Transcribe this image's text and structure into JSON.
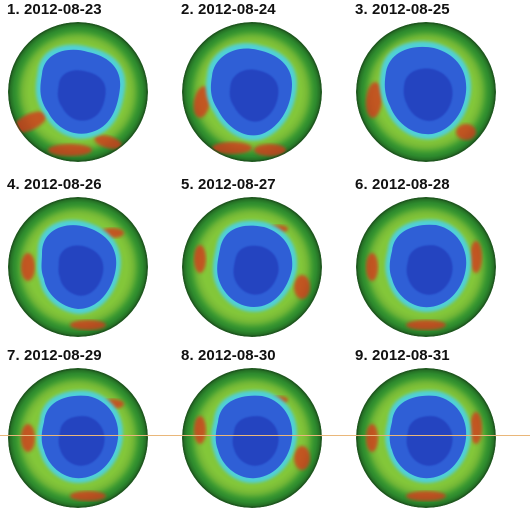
{
  "frames": [
    {
      "label": "1. 2012-08-23",
      "variant": 0
    },
    {
      "label": "2. 2012-08-24",
      "variant": 1
    },
    {
      "label": "3. 2012-08-25",
      "variant": 2
    },
    {
      "label": "4. 2012-08-26",
      "variant": 3
    },
    {
      "label": "5. 2012-08-27",
      "variant": 4
    },
    {
      "label": "6. 2012-08-28",
      "variant": 5
    },
    {
      "label": "7. 2012-08-29",
      "variant": 6
    },
    {
      "label": "8. 2012-08-30",
      "variant": 7
    },
    {
      "label": "9. 2012-08-31",
      "variant": 8
    }
  ],
  "colors": {
    "ring_green": "#2e8b2e",
    "mid_green": "#56c23a",
    "cyan": "#4fd0d8",
    "hole_blue": "#2f5fd6",
    "deep_blue": "#1c2fb0",
    "hot_red": "#d23a1a",
    "yellow": "#d8d23a"
  }
}
